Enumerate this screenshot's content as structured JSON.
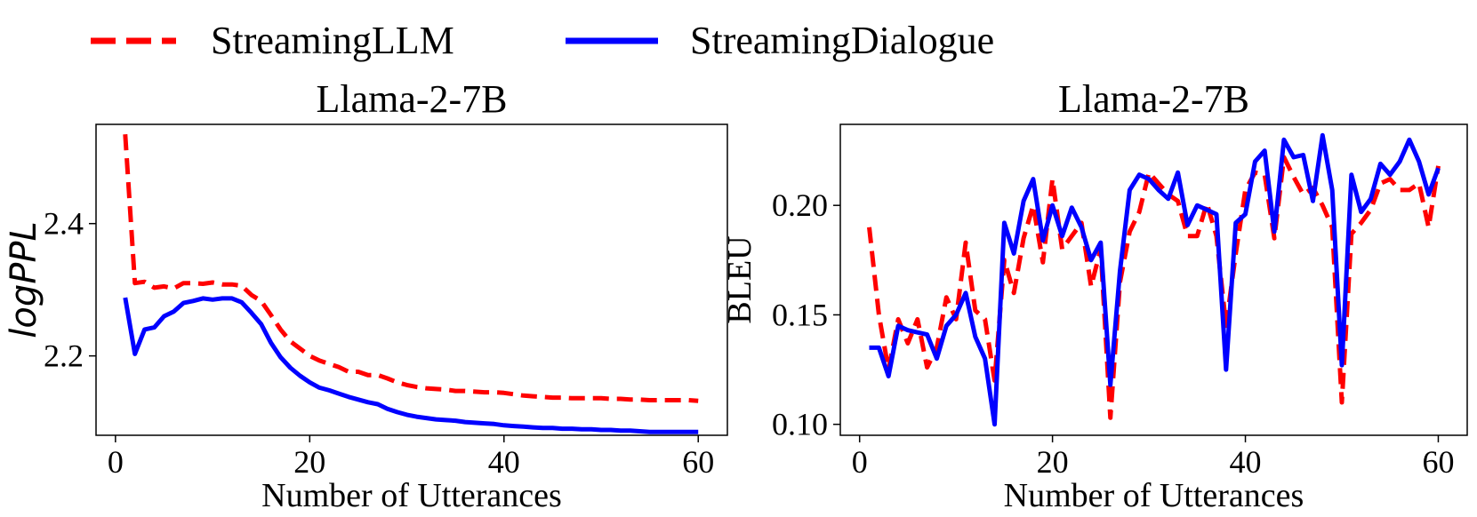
{
  "legend": {
    "placement": "top-center",
    "entries": [
      {
        "label": "StreamingLLM",
        "color": "#ff0000",
        "style": "dashed"
      },
      {
        "label": "StreamingDialogue",
        "color": "#0000ff",
        "style": "solid"
      }
    ]
  },
  "chart_data": [
    {
      "type": "line",
      "title": "Llama-2-7B",
      "xlabel": "Number of Utterances",
      "ylabel": "logPPL",
      "xlim": [
        -2,
        63
      ],
      "ylim": [
        2.08,
        2.55
      ],
      "xticks": [
        0,
        20,
        40,
        60
      ],
      "yticks": [
        2.2,
        2.4
      ],
      "ytick_format": "1",
      "grid": false,
      "x": [
        1,
        2,
        3,
        4,
        5,
        6,
        7,
        8,
        9,
        10,
        11,
        12,
        13,
        14,
        15,
        16,
        17,
        18,
        19,
        20,
        21,
        22,
        23,
        24,
        25,
        26,
        27,
        28,
        29,
        30,
        31,
        32,
        33,
        34,
        35,
        36,
        37,
        38,
        39,
        40,
        41,
        42,
        43,
        44,
        45,
        46,
        47,
        48,
        49,
        50,
        51,
        52,
        53,
        54,
        55,
        56,
        57,
        58,
        59,
        60
      ],
      "series": [
        {
          "name": "StreamingLLM",
          "color": "#ff0000",
          "dash": true,
          "values": [
            2.535,
            2.31,
            2.312,
            2.303,
            2.305,
            2.302,
            2.31,
            2.31,
            2.309,
            2.311,
            2.308,
            2.308,
            2.306,
            2.292,
            2.283,
            2.262,
            2.24,
            2.222,
            2.211,
            2.2,
            2.193,
            2.188,
            2.183,
            2.176,
            2.176,
            2.171,
            2.171,
            2.166,
            2.16,
            2.156,
            2.153,
            2.151,
            2.15,
            2.149,
            2.147,
            2.147,
            2.146,
            2.145,
            2.145,
            2.144,
            2.142,
            2.14,
            2.139,
            2.138,
            2.137,
            2.137,
            2.136,
            2.136,
            2.136,
            2.136,
            2.135,
            2.135,
            2.134,
            2.134,
            2.133,
            2.133,
            2.133,
            2.133,
            2.133,
            2.132
          ]
        },
        {
          "name": "StreamingDialogue",
          "color": "#0000ff",
          "dash": false,
          "values": [
            2.288,
            2.203,
            2.24,
            2.243,
            2.26,
            2.267,
            2.28,
            2.283,
            2.287,
            2.285,
            2.287,
            2.287,
            2.281,
            2.265,
            2.248,
            2.22,
            2.198,
            2.182,
            2.17,
            2.16,
            2.152,
            2.148,
            2.143,
            2.138,
            2.134,
            2.13,
            2.127,
            2.12,
            2.115,
            2.111,
            2.108,
            2.106,
            2.104,
            2.103,
            2.102,
            2.1,
            2.099,
            2.098,
            2.097,
            2.095,
            2.094,
            2.093,
            2.092,
            2.091,
            2.091,
            2.09,
            2.09,
            2.089,
            2.089,
            2.088,
            2.088,
            2.087,
            2.087,
            2.086,
            2.085,
            2.085,
            2.085,
            2.085,
            2.085,
            2.085
          ]
        }
      ]
    },
    {
      "type": "line",
      "title": "Llama-2-7B",
      "xlabel": "Number of Utterances",
      "ylabel": "BLEU",
      "xlim": [
        -2,
        63
      ],
      "ylim": [
        0.095,
        0.237
      ],
      "xticks": [
        0,
        20,
        40,
        60
      ],
      "yticks": [
        0.1,
        0.15,
        0.2
      ],
      "ytick_format": "2",
      "grid": false,
      "x": [
        1,
        2,
        3,
        4,
        5,
        6,
        7,
        8,
        9,
        10,
        11,
        12,
        13,
        14,
        15,
        16,
        17,
        18,
        19,
        20,
        21,
        22,
        23,
        24,
        25,
        26,
        27,
        28,
        29,
        30,
        31,
        32,
        33,
        34,
        35,
        36,
        37,
        38,
        39,
        40,
        41,
        42,
        43,
        44,
        45,
        46,
        47,
        48,
        49,
        50,
        51,
        52,
        53,
        54,
        55,
        56,
        57,
        58,
        59,
        60
      ],
      "series": [
        {
          "name": "StreamingLLM",
          "color": "#ff0000",
          "dash": true,
          "values": [
            0.19,
            0.15,
            0.125,
            0.148,
            0.137,
            0.148,
            0.126,
            0.135,
            0.158,
            0.148,
            0.183,
            0.152,
            0.148,
            0.12,
            0.175,
            0.16,
            0.185,
            0.2,
            0.174,
            0.212,
            0.18,
            0.186,
            0.192,
            0.163,
            0.18,
            0.103,
            0.165,
            0.188,
            0.197,
            0.215,
            0.21,
            0.205,
            0.202,
            0.186,
            0.186,
            0.201,
            0.186,
            0.145,
            0.178,
            0.207,
            0.215,
            0.214,
            0.185,
            0.222,
            0.213,
            0.205,
            0.208,
            0.2,
            0.19,
            0.11,
            0.187,
            0.192,
            0.198,
            0.21,
            0.212,
            0.207,
            0.207,
            0.21,
            0.19,
            0.218
          ]
        },
        {
          "name": "StreamingDialogue",
          "color": "#0000ff",
          "dash": false,
          "values": [
            0.135,
            0.135,
            0.122,
            0.145,
            0.143,
            0.142,
            0.141,
            0.13,
            0.145,
            0.15,
            0.16,
            0.14,
            0.13,
            0.1,
            0.192,
            0.178,
            0.202,
            0.212,
            0.184,
            0.2,
            0.186,
            0.199,
            0.19,
            0.175,
            0.183,
            0.118,
            0.17,
            0.207,
            0.214,
            0.212,
            0.207,
            0.203,
            0.215,
            0.191,
            0.2,
            0.198,
            0.196,
            0.125,
            0.192,
            0.196,
            0.22,
            0.225,
            0.188,
            0.23,
            0.222,
            0.223,
            0.202,
            0.232,
            0.207,
            0.127,
            0.214,
            0.197,
            0.203,
            0.219,
            0.214,
            0.22,
            0.23,
            0.22,
            0.205,
            0.217
          ]
        }
      ]
    }
  ]
}
